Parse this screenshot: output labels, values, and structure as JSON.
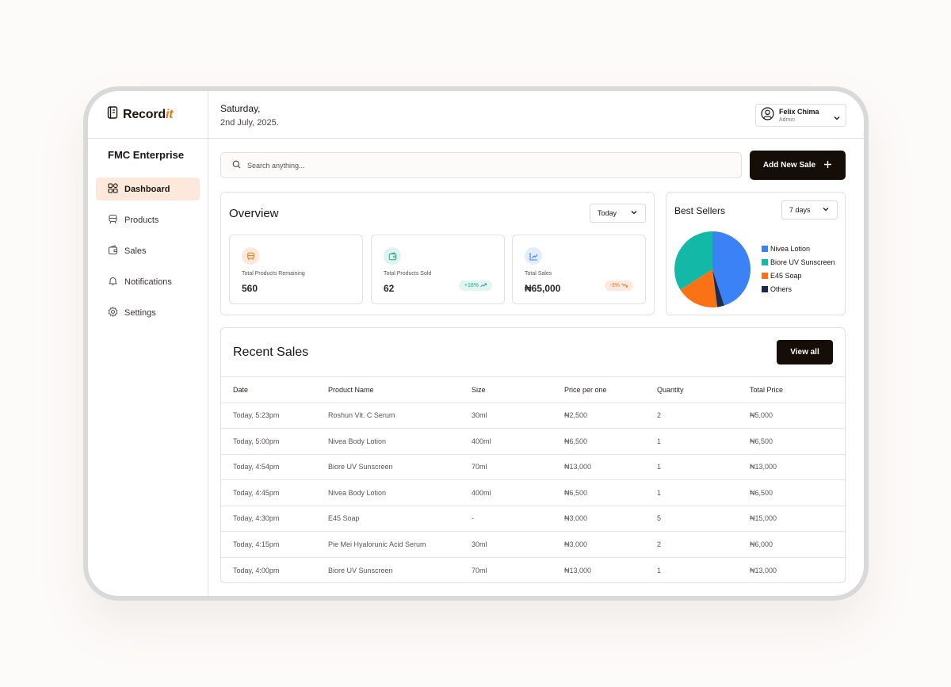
{
  "app": {
    "name_prefix": "Record",
    "name_suffix": "it",
    "company": "FMC Enterprise"
  },
  "sidebar": {
    "items": [
      {
        "label": "Dashboard",
        "icon": "dashboard-icon",
        "active": true
      },
      {
        "label": "Products",
        "icon": "products-icon",
        "active": false
      },
      {
        "label": "Sales",
        "icon": "wallet-icon",
        "active": false
      },
      {
        "label": "Notifications",
        "icon": "bell-icon",
        "active": false
      },
      {
        "label": "Settings",
        "icon": "gear-icon",
        "active": false
      }
    ]
  },
  "header": {
    "day": "Saturday,",
    "date": "2nd July, 2025.",
    "user_name": "Felix Chima",
    "user_role": "Admin"
  },
  "search": {
    "placeholder": "Search anything..."
  },
  "actions": {
    "add_sale": "Add New Sale"
  },
  "overview": {
    "title": "Overview",
    "period": "Today",
    "stats": [
      {
        "label": "Total Products Remaining",
        "value": "560",
        "icon": "products-icon"
      },
      {
        "label": "Total Products Sold",
        "value": "62",
        "icon": "wallet-icon",
        "badge": "+18%"
      },
      {
        "label": "Total Sales",
        "value": "₦65,000",
        "icon": "chart-up-icon",
        "badge": "-3%"
      }
    ]
  },
  "best_sellers": {
    "title": "Best Sellers",
    "period": "7 days",
    "legend": [
      {
        "label": "Nivea Lotion",
        "color": "#3b82f6"
      },
      {
        "label": "Biore UV Sunscreen",
        "color": "#14b8a6"
      },
      {
        "label": "E45 Soap",
        "color": "#f97316"
      },
      {
        "label": "Others",
        "color": "#1e2a4a"
      }
    ]
  },
  "chart_data": {
    "type": "pie",
    "labels": [
      "Nivea Lotion",
      "Others",
      "E45 Soap",
      "Biore UV Sunscreen"
    ],
    "values": [
      45,
      3,
      18,
      34
    ],
    "colors": [
      "#3b82f6",
      "#1e2a4a",
      "#f97316",
      "#14b8a6"
    ]
  },
  "recent_sales": {
    "title": "Recent Sales",
    "view_all": "View all",
    "columns": [
      "Date",
      "Product Name",
      "Size",
      "Price per one",
      "Quantity",
      "Total Price"
    ],
    "rows": [
      [
        "Today, 5:23pm",
        "Roshun Vit. C Serum",
        "30ml",
        "₦2,500",
        "2",
        "₦5,000"
      ],
      [
        "Today, 5:00pm",
        "Nivea Body Lotion",
        "400ml",
        "₦6,500",
        "1",
        "₦6,500"
      ],
      [
        "Today, 4:54pm",
        "Biore UV Sunscreen",
        "70ml",
        "₦13,000",
        "1",
        "₦13,000"
      ],
      [
        "Today, 4:45pm",
        "Nivea Body Lotion",
        "400ml",
        "₦6,500",
        "1",
        "₦6,500"
      ],
      [
        "Today, 4:30pm",
        "E45 Soap",
        "-",
        "₦3,000",
        "5",
        "₦15,000"
      ],
      [
        "Today, 4:15pm",
        "Pie Mei Hyalorunic Acid Serum",
        "30ml",
        "₦3,000",
        "2",
        "₦6,000"
      ],
      [
        "Today, 4:00pm",
        "Biore UV Sunscreen",
        "70ml",
        "₦13,000",
        "1",
        "₦13,000"
      ]
    ]
  }
}
